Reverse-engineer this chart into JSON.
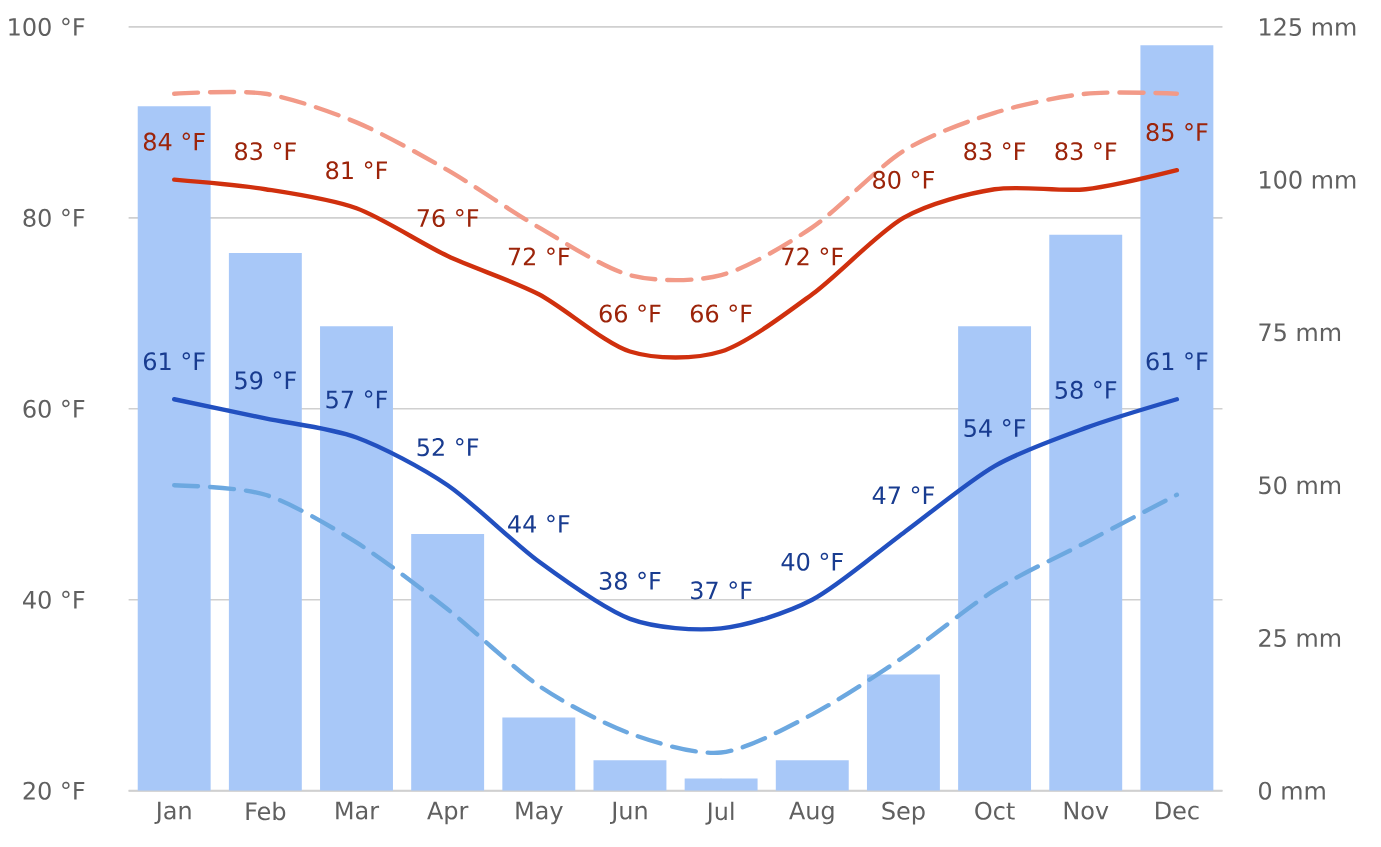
{
  "chart_data": {
    "type": "bar",
    "categories": [
      "Jan",
      "Feb",
      "Mar",
      "Apr",
      "May",
      "Jun",
      "Jul",
      "Aug",
      "Sep",
      "Oct",
      "Nov",
      "Dec"
    ],
    "series": [
      {
        "axis": "y2",
        "color": "#a8c8f8",
        "values": [
          112,
          88,
          76,
          42,
          12,
          5,
          2,
          5,
          19,
          76,
          91,
          122
        ]
      },
      {
        "type": "line",
        "line_style": "dashed",
        "color": "#f29a88",
        "values": [
          93,
          93,
          90,
          85,
          79,
          74,
          74,
          79,
          87,
          91,
          93,
          93
        ]
      },
      {
        "type": "line",
        "line_style": "solid",
        "color": "#d0300e",
        "values": [
          84,
          83,
          81,
          76,
          72,
          66,
          66,
          72,
          80,
          83,
          83,
          85
        ],
        "value_labels": [
          "84 °F",
          "83 °F",
          "81 °F",
          "76 °F",
          "72 °F",
          "66 °F",
          "66 °F",
          "72 °F",
          "80 °F",
          "83 °F",
          "83 °F",
          "85 °F"
        ]
      },
      {
        "type": "line",
        "line_style": "dashed",
        "color": "#6ca8e0",
        "values": [
          52,
          51,
          46,
          39,
          31,
          26,
          24,
          28,
          34,
          41,
          46,
          51
        ]
      },
      {
        "type": "line",
        "line_style": "solid",
        "color": "#2250c0",
        "values": [
          61,
          59,
          57,
          52,
          44,
          38,
          37,
          40,
          47,
          54,
          58,
          61
        ],
        "value_labels": [
          "61 °F",
          "59 °F",
          "57 °F",
          "52 °F",
          "44 °F",
          "38 °F",
          "37 °F",
          "40 °F",
          "47 °F",
          "54 °F",
          "58 °F",
          "61 °F"
        ]
      }
    ],
    "ylim": [
      20,
      100
    ],
    "yticks": [
      {
        "value": 20,
        "label": "20 °F"
      },
      {
        "value": 40,
        "label": "40 °F"
      },
      {
        "value": 60,
        "label": "60 °F"
      },
      {
        "value": 80,
        "label": "80 °F"
      },
      {
        "value": 100,
        "label": "100 °F"
      }
    ],
    "y2lim": [
      0,
      125
    ],
    "y2ticks": [
      {
        "value": 0,
        "label": "0 mm"
      },
      {
        "value": 25,
        "label": "25 mm"
      },
      {
        "value": 50,
        "label": "50 mm"
      },
      {
        "value": 75,
        "label": "75 mm"
      },
      {
        "value": 100,
        "label": "100 mm"
      },
      {
        "value": 125,
        "label": "125 mm"
      }
    ],
    "grid": "y"
  }
}
